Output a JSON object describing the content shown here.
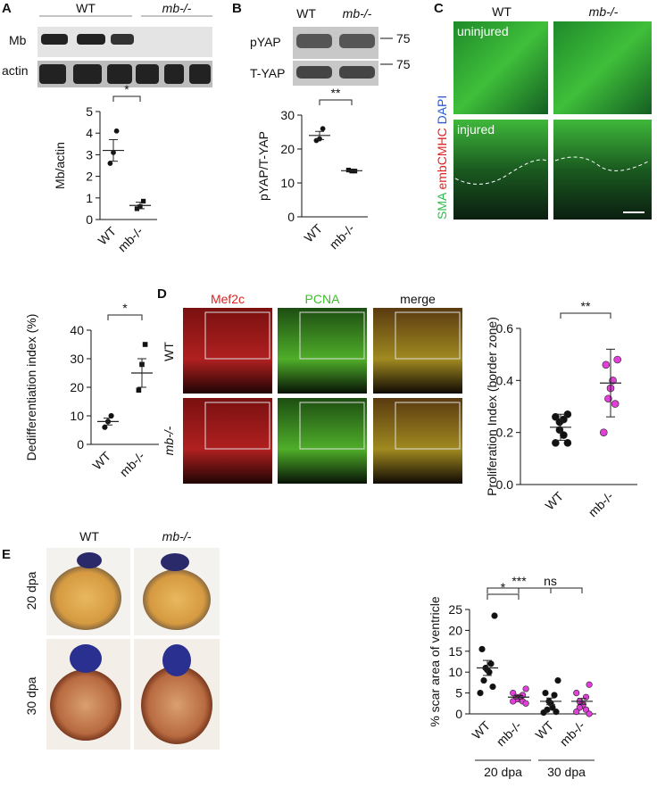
{
  "panels": {
    "A": {
      "label": "A",
      "header": [
        "WT",
        "mb-/-"
      ],
      "rows": [
        "Mb",
        "actin"
      ]
    },
    "B": {
      "label": "B",
      "header": [
        "WT",
        "mb-/-"
      ],
      "rows": [
        "pYAP",
        "T-YAP"
      ],
      "weights": [
        75,
        75
      ]
    },
    "C": {
      "label": "C",
      "columns": [
        "WT",
        "mb-/-"
      ],
      "rows": [
        "uninjured",
        "injured"
      ],
      "stains": [
        "SMA",
        "embCMHC",
        "DAPI"
      ]
    },
    "D": {
      "label": "D",
      "columns": [
        "Mef2c",
        "PCNA",
        "merge"
      ],
      "rows": [
        "WT",
        "mb-/-"
      ]
    },
    "E": {
      "label": "E",
      "columns": [
        "WT",
        "mb-/-"
      ],
      "rows": [
        "20 dpa",
        "30 dpa"
      ]
    }
  },
  "chart_data": [
    {
      "type": "dotplot",
      "ylabel": "Mb/actin",
      "categories": [
        "WT",
        "mb-/-"
      ],
      "points": [
        [
          4.1,
          3.1,
          2.6
        ],
        [
          0.85,
          0.6,
          0.5
        ]
      ],
      "mean": [
        3.2,
        0.65
      ],
      "error": [
        0.5,
        0.15
      ],
      "colors": [
        "#111111",
        "#111111"
      ],
      "markers": [
        "circle",
        "square"
      ],
      "ylim": [
        0,
        5
      ],
      "yticks": [
        0,
        1,
        2,
        3,
        4,
        5
      ],
      "comparisons": [
        {
          "label": "*",
          "between": [
            0,
            1
          ]
        }
      ]
    },
    {
      "type": "dotplot",
      "ylabel": "pYAP/T-YAP",
      "categories": [
        "WT",
        "mb-/-"
      ],
      "points": [
        [
          26,
          23,
          22.5
        ],
        [
          13.5,
          13.5,
          13.8
        ]
      ],
      "mean": [
        24,
        13.6
      ],
      "error": [
        1.2,
        0.1
      ],
      "colors": [
        "#111111",
        "#111111"
      ],
      "markers": [
        "circle",
        "square"
      ],
      "ylim": [
        0,
        30
      ],
      "yticks": [
        0,
        10,
        20,
        30
      ],
      "comparisons": [
        {
          "label": "**",
          "between": [
            0,
            1
          ]
        }
      ]
    },
    {
      "type": "dotplot",
      "ylabel": "Dedifferentiation index (%)",
      "categories": [
        "WT",
        "mb-/-"
      ],
      "points": [
        [
          10,
          8,
          6
        ],
        [
          35,
          28,
          19
        ]
      ],
      "mean": [
        8,
        25
      ],
      "error": [
        1.2,
        5
      ],
      "colors": [
        "#111111",
        "#111111"
      ],
      "markers": [
        "circle",
        "square"
      ],
      "ylim": [
        0,
        40
      ],
      "yticks": [
        0,
        10,
        20,
        30,
        40
      ],
      "comparisons": [
        {
          "label": "*",
          "between": [
            0,
            1
          ]
        }
      ]
    },
    {
      "type": "dotplot",
      "ylabel": "Proliferation Index (border zone)",
      "categories": [
        "WT",
        "mb-/-"
      ],
      "points": [
        [
          0.27,
          0.26,
          0.25,
          0.24,
          0.21,
          0.19,
          0.16,
          0.16
        ],
        [
          0.48,
          0.46,
          0.4,
          0.37,
          0.33,
          0.31,
          0.2
        ]
      ],
      "mean": [
        0.22,
        0.39
      ],
      "error": [
        0.05,
        0.13
      ],
      "colors": [
        "#111111",
        "#e040d8"
      ],
      "markers": [
        "circle",
        "circle"
      ],
      "ylim": [
        0,
        0.6
      ],
      "yticks": [
        {
          "value": 0,
          "label": "0.0"
        },
        {
          "value": 0.2,
          "label": "0.2"
        },
        {
          "value": 0.4,
          "label": "0.4"
        },
        {
          "value": 0.6,
          "label": "0.6"
        }
      ],
      "comparisons": [
        {
          "label": "**",
          "between": [
            0,
            1
          ]
        }
      ]
    },
    {
      "type": "dotplot",
      "ylabel": "% scar area of ventricle",
      "categories": [
        "WT",
        "mb-/-",
        "WT",
        "mb-/-"
      ],
      "points": [
        [
          23.5,
          15.5,
          12,
          11,
          10.5,
          10,
          8,
          6.5,
          5
        ],
        [
          6,
          5,
          4.5,
          4,
          4,
          3.5,
          3.5,
          3,
          3,
          2.5
        ],
        [
          8,
          5,
          4.5,
          3,
          2.5,
          1.5,
          1,
          0.5,
          0.3
        ],
        [
          7,
          5,
          4,
          3,
          2.5,
          2,
          1.5,
          1,
          0.5,
          0
        ]
      ],
      "mean": [
        11,
        4,
        3,
        3
      ],
      "error": [
        1.8,
        0.4,
        0.8,
        0.7
      ],
      "colors": [
        "#111111",
        "#e040d8",
        "#111111",
        "#e040d8"
      ],
      "markers": [
        "circle",
        "circle",
        "circle",
        "circle"
      ],
      "ylim": [
        0,
        25
      ],
      "yticks": [
        0,
        5,
        10,
        15,
        20,
        25
      ],
      "comparisons": [
        {
          "label": "*",
          "between": [
            0,
            1
          ]
        },
        {
          "label": "ns",
          "between": [
            1,
            3
          ]
        },
        {
          "label": "***",
          "between": [
            0,
            2
          ]
        }
      ],
      "groups": [
        {
          "label": "20 dpa",
          "between": [
            0,
            1
          ]
        },
        {
          "label": "30 dpa",
          "between": [
            2,
            3
          ]
        }
      ]
    }
  ]
}
